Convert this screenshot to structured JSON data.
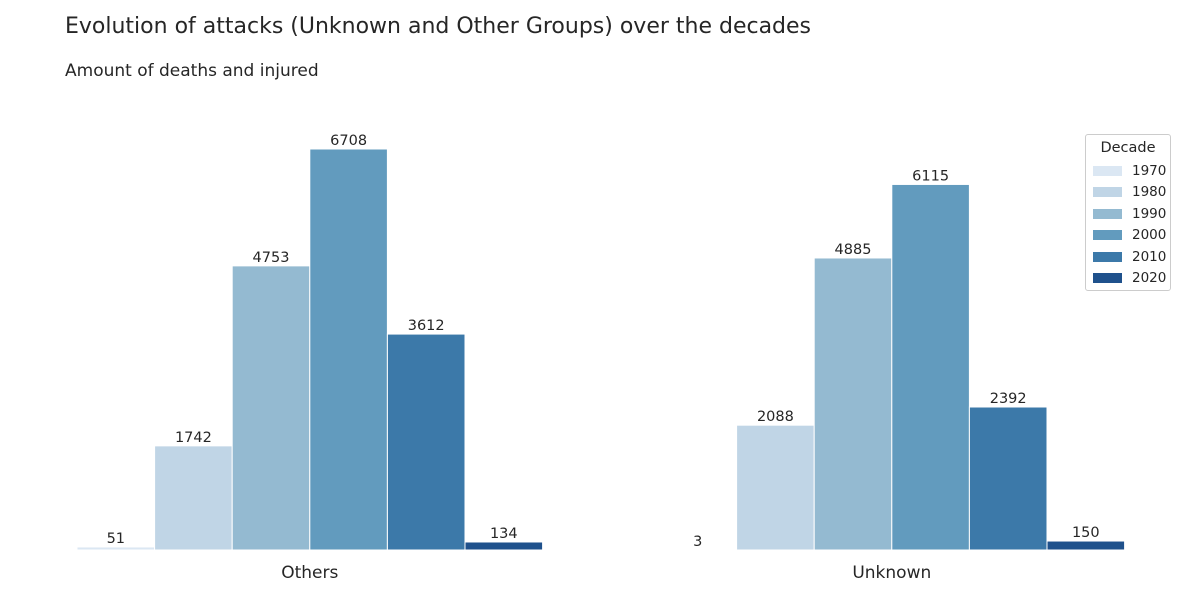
{
  "title": "Evolution of attacks (Unknown and Other Groups) over the decades",
  "subtitle": "Amount of deaths and injured",
  "legend": {
    "title": "Decade",
    "placement": "top-right",
    "items": [
      {
        "label": "1970",
        "color": "#dbe7f3"
      },
      {
        "label": "1980",
        "color": "#c0d5e6"
      },
      {
        "label": "1990",
        "color": "#94bad1"
      },
      {
        "label": "2000",
        "color": "#629bbe"
      },
      {
        "label": "2010",
        "color": "#3c79a9"
      },
      {
        "label": "2020",
        "color": "#1f518c"
      }
    ]
  },
  "chart_data": {
    "type": "bar",
    "title": "Evolution of attacks (Unknown and Other Groups) over the decades",
    "subtitle": "Amount of deaths and injured",
    "categories": [
      "Others",
      "Unknown"
    ],
    "series": [
      {
        "name": "1970",
        "values": [
          51,
          3
        ]
      },
      {
        "name": "1980",
        "values": [
          1742,
          2088
        ]
      },
      {
        "name": "1990",
        "values": [
          4753,
          4885
        ]
      },
      {
        "name": "2000",
        "values": [
          6708,
          6115
        ]
      },
      {
        "name": "2010",
        "values": [
          3612,
          2392
        ]
      },
      {
        "name": "2020",
        "values": [
          134,
          150
        ]
      }
    ],
    "ylim": [
      0,
      6708
    ],
    "grid": false,
    "y_axis_visible": false,
    "legend": "top-right"
  }
}
